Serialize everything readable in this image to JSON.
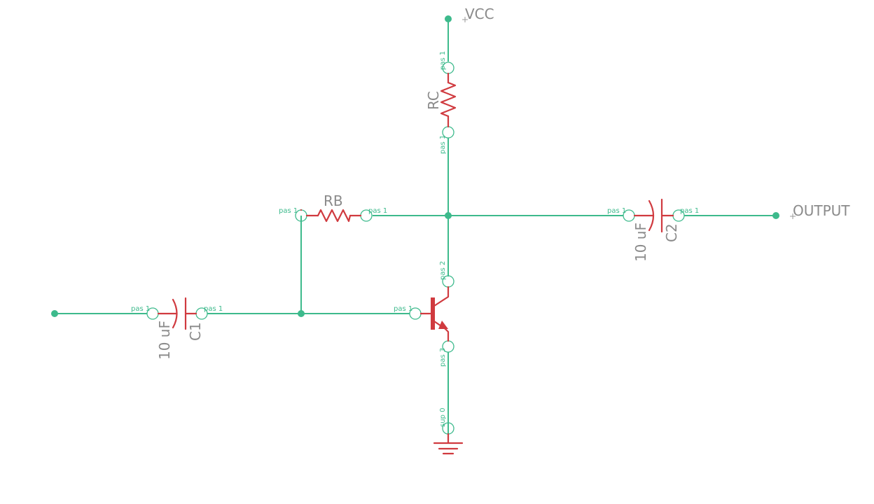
{
  "nets": {
    "vcc": "VCC",
    "output": "OUTPUT"
  },
  "components": {
    "rc": {
      "name": "RC",
      "pin_top": "pas 1",
      "pin_bottom": "pas 1"
    },
    "rb": {
      "name": "RB",
      "pin_left": "pas 1",
      "pin_right": "pas 1"
    },
    "c1": {
      "name": "C1",
      "value": "10 uF",
      "pin_left": "pas 1",
      "pin_right": "pas 1"
    },
    "c2": {
      "name": "C2",
      "value": "10 uF",
      "pin_left": "pas 1",
      "pin_right": "pas 1"
    },
    "transistor": {
      "pin_base": "pas 1",
      "pin_collector": "pas 2",
      "pin_emitter": "pas 3"
    },
    "ground": {
      "pin": "sup 0"
    }
  },
  "colors": {
    "wire": "#3dba8c",
    "part": "#d03a3f",
    "label": "#8a8a8a"
  }
}
